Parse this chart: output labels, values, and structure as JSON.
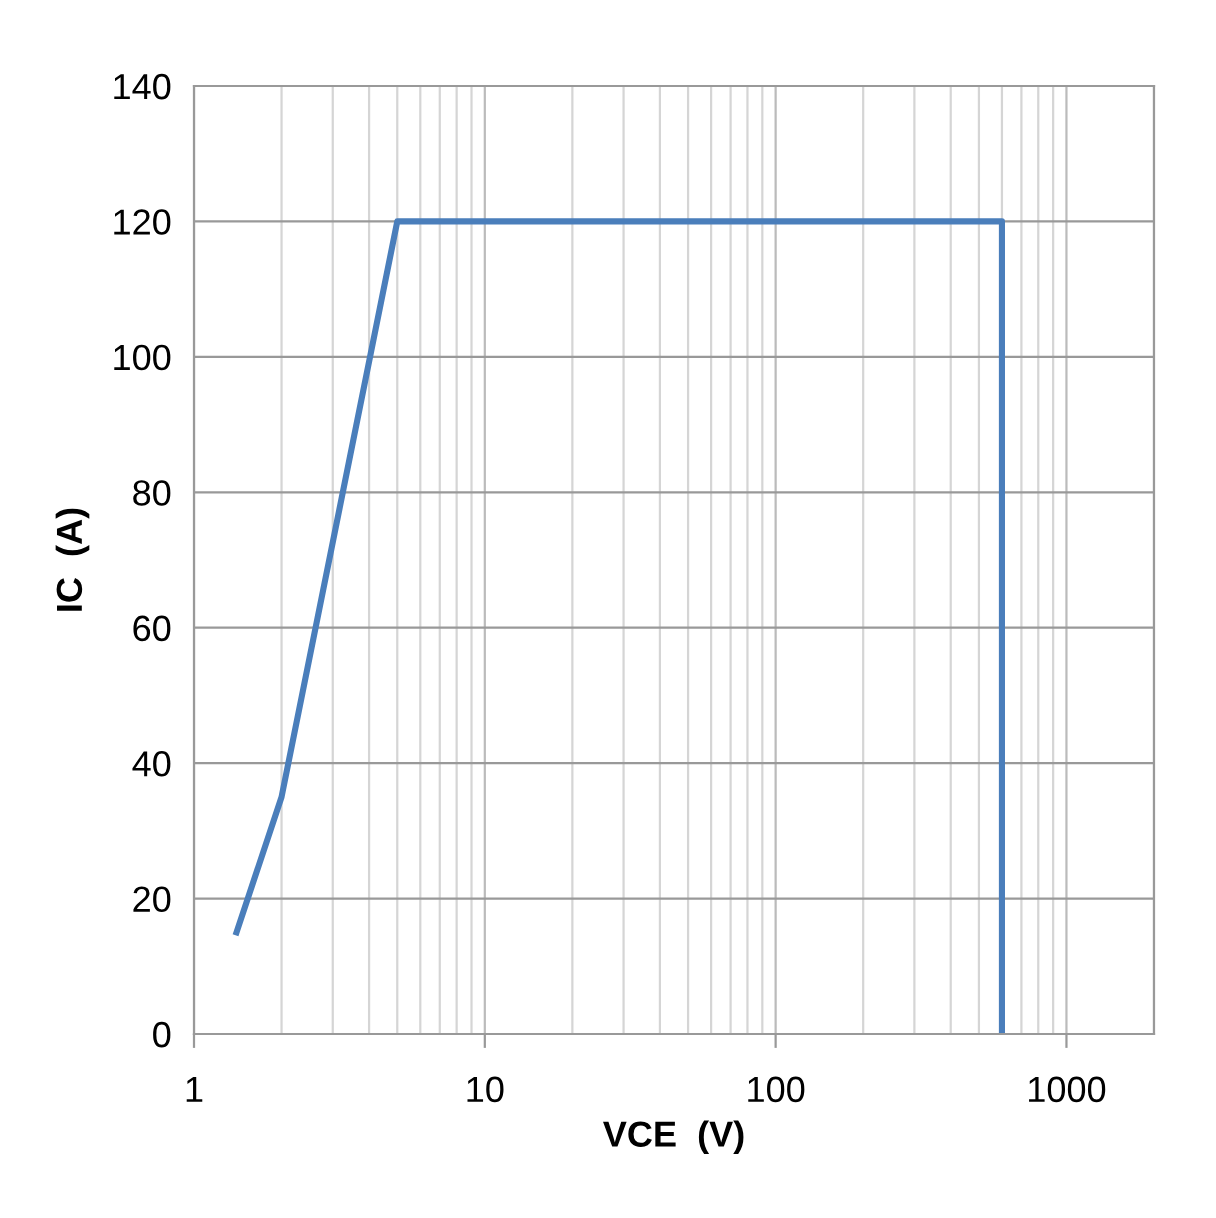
{
  "chart_data": {
    "type": "line",
    "xlabel": "VCE  (V)",
    "ylabel": "IC  (A)",
    "log": "x",
    "grid": true,
    "xlim": [
      1,
      2000
    ],
    "xticks": [
      1,
      10,
      100,
      1000
    ],
    "ylim": [
      0,
      140
    ],
    "yticks": [
      0,
      20,
      40,
      60,
      80,
      100,
      120,
      140
    ],
    "series": [
      {
        "color": "#4a7ebb",
        "x": [
          1.4,
          2,
          5,
          600,
          600
        ],
        "values": [
          15,
          35,
          120,
          120,
          0
        ]
      }
    ]
  }
}
